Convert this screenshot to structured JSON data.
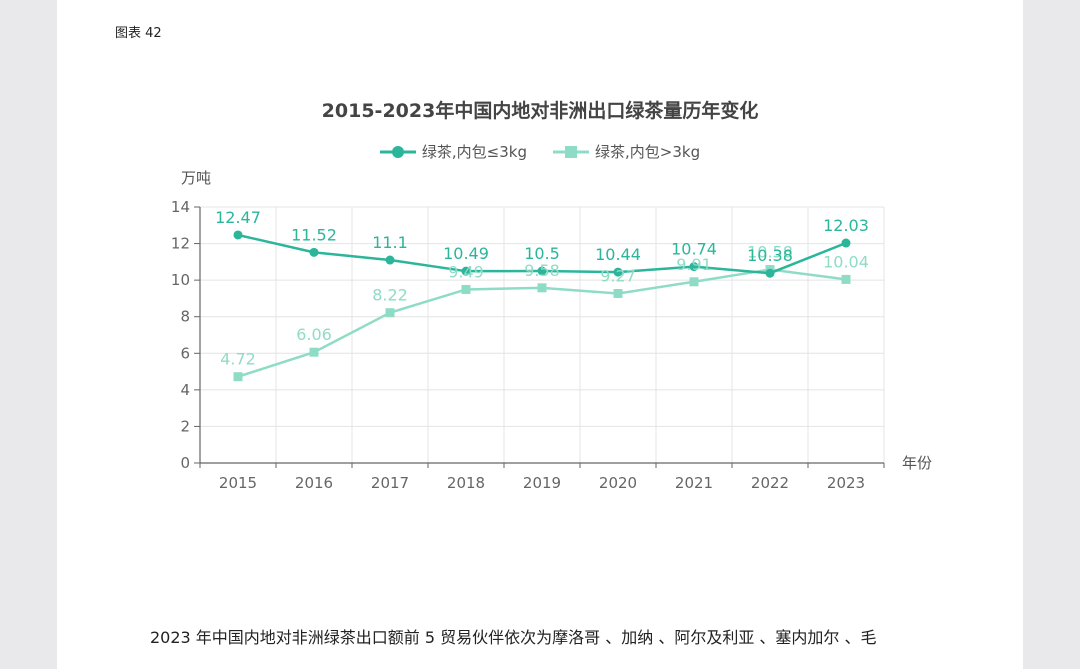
{
  "figure_label": "图表 42",
  "body_text": "2023 年中国内地对非洲绿茶出口额前 5 贸易伙伴依次为摩洛哥 、加纳 、阿尔及利亚 、塞内加尔 、毛",
  "colors": {
    "series1": "#2bb59a",
    "series2": "#8fdcc6",
    "axis": "#666666",
    "grid": "#e4e4e4"
  },
  "chart_data": {
    "type": "line",
    "title": "2015-2023年中国内地对非洲出口绿茶量历年变化",
    "ylabel": "万吨",
    "xlabel": "年份",
    "categories": [
      "2015",
      "2016",
      "2017",
      "2018",
      "2019",
      "2020",
      "2021",
      "2022",
      "2023"
    ],
    "ylim": [
      0,
      14
    ],
    "yticks": [
      "0",
      "2",
      "4",
      "6",
      "8",
      "10",
      "12",
      "14"
    ],
    "grid": true,
    "legend_position": "top-center",
    "series": [
      {
        "name": "绿茶,内包≤3kg",
        "marker": "circle",
        "values": [
          12.47,
          11.52,
          11.1,
          10.49,
          10.5,
          10.44,
          10.74,
          10.38,
          12.03
        ],
        "labels": [
          "12.47",
          "11.52",
          "11.1",
          "10.49",
          "10.5",
          "10.44",
          "10.74",
          "10.38",
          "12.03"
        ]
      },
      {
        "name": "绿茶,内包>3kg",
        "marker": "square",
        "values": [
          4.72,
          6.06,
          8.22,
          9.49,
          9.58,
          9.27,
          9.91,
          10.58,
          10.04
        ],
        "labels": [
          "4.72",
          "6.06",
          "8.22",
          "9.49",
          "9.58",
          "9.27",
          "9.91",
          "10.58",
          "10.04"
        ]
      }
    ]
  }
}
